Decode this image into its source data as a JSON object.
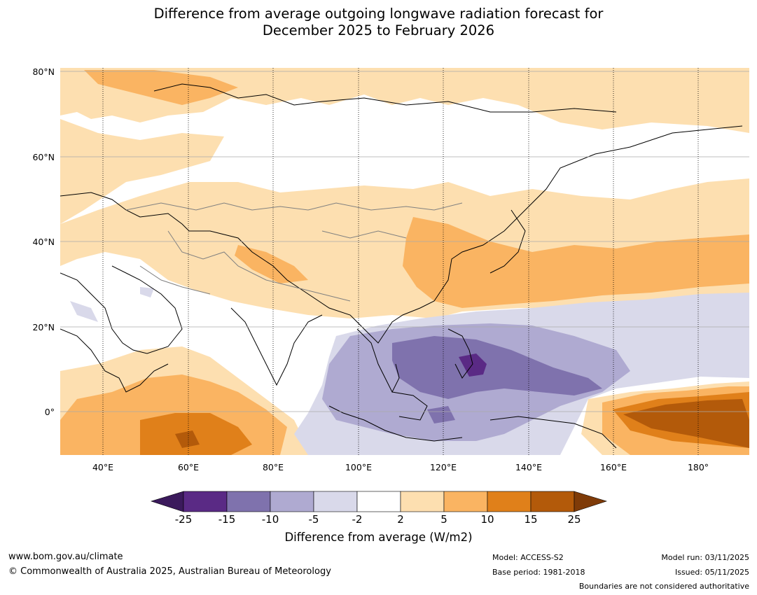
{
  "title": {
    "line1": "Difference from average outgoing longwave radiation forecast for",
    "line2": "December 2025 to February 2026"
  },
  "map": {
    "lat_labels": [
      "80°N",
      "60°N",
      "40°N",
      "20°N",
      "0°"
    ],
    "lon_labels": [
      "40°E",
      "60°E",
      "80°E",
      "100°E",
      "120°E",
      "140°E",
      "160°E",
      "180°"
    ],
    "extent": {
      "lon_min": 30,
      "lon_max": 192,
      "lat_min": -10,
      "lat_max": 81
    }
  },
  "colorbar": {
    "ticks": [
      "-25",
      "-15",
      "-10",
      "-5",
      "-2",
      "2",
      "5",
      "10",
      "15",
      "25"
    ],
    "colors": [
      "#3b1a5c",
      "#5a2a85",
      "#7f72ad",
      "#afaad1",
      "#d9d9ea",
      "#ffffff",
      "#fddfb0",
      "#fab462",
      "#e0801a",
      "#b35a0a",
      "#7f3b08"
    ],
    "label": "Difference from average (W/m2)"
  },
  "footer": {
    "website": "www.bom.gov.au/climate",
    "copyright": "© Commonwealth of Australia 2025, Australian Bureau of Meteorology",
    "model": "Model: ACCESS-S2",
    "base_period": "Base period: 1981-2018",
    "model_run": "Model run: 03/11/2025",
    "issued": "Issued: 05/11/2025",
    "disclaimer": "Boundaries are not considered authoritative"
  }
}
